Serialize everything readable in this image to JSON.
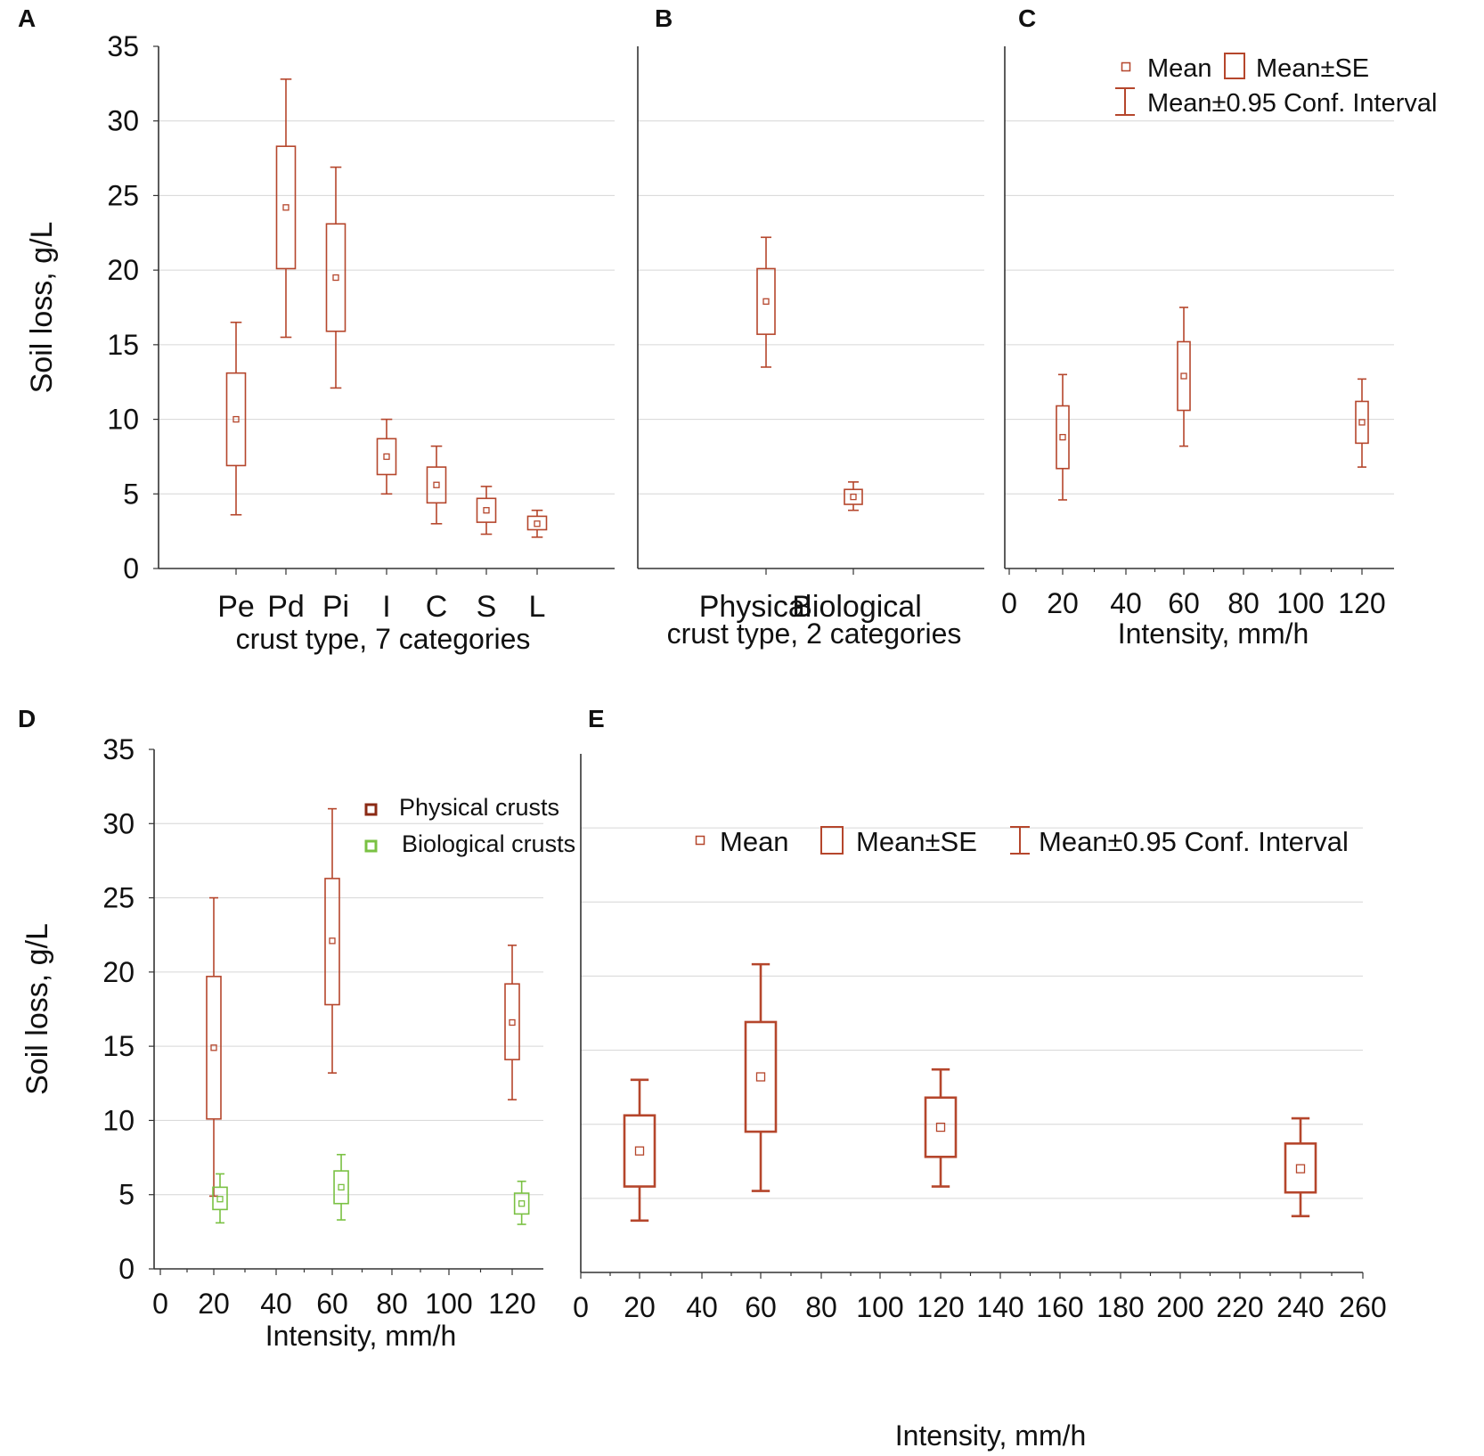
{
  "colors": {
    "physical": "#b5462c",
    "biological": "#7ac143",
    "axis": "#333333",
    "grid": "#d6d6d6"
  },
  "legend_top": {
    "mean": "Mean",
    "se": "Mean±SE",
    "ci": "Mean±0.95 Conf. Interval"
  },
  "chart_data": [
    {
      "id": "A",
      "panel_label": "A",
      "type": "box",
      "ylabel": "Soil loss, g/L",
      "xlabel": "crust type, 7 categories",
      "ylim": [
        0,
        35
      ],
      "yticks": [
        0,
        5,
        10,
        15,
        20,
        25,
        30,
        35
      ],
      "categories": [
        "Pe",
        "Pd",
        "Pi",
        "I",
        "C",
        "S",
        "L"
      ],
      "series": [
        {
          "name": "Soil loss",
          "points": [
            {
              "x": "Pe",
              "mean": 10.0,
              "se_low": 6.9,
              "se_high": 13.1,
              "ci_low": 3.6,
              "ci_high": 16.5
            },
            {
              "x": "Pd",
              "mean": 24.2,
              "se_low": 20.1,
              "se_high": 28.3,
              "ci_low": 15.5,
              "ci_high": 32.8
            },
            {
              "x": "Pi",
              "mean": 19.5,
              "se_low": 15.9,
              "se_high": 23.1,
              "ci_low": 12.1,
              "ci_high": 26.9
            },
            {
              "x": "I",
              "mean": 7.5,
              "se_low": 6.3,
              "se_high": 8.7,
              "ci_low": 5.0,
              "ci_high": 10.0
            },
            {
              "x": "C",
              "mean": 5.6,
              "se_low": 4.4,
              "se_high": 6.8,
              "ci_low": 3.0,
              "ci_high": 8.2
            },
            {
              "x": "S",
              "mean": 3.9,
              "se_low": 3.1,
              "se_high": 4.7,
              "ci_low": 2.3,
              "ci_high": 5.5
            },
            {
              "x": "L",
              "mean": 3.0,
              "se_low": 2.6,
              "se_high": 3.5,
              "ci_low": 2.1,
              "ci_high": 3.9
            }
          ]
        }
      ]
    },
    {
      "id": "B",
      "panel_label": "B",
      "type": "box",
      "ylabel": "",
      "xlabel": "crust type, 2 categories",
      "ylim": [
        0,
        35
      ],
      "categories": [
        "Physical",
        "Biological"
      ],
      "series": [
        {
          "name": "Soil loss",
          "points": [
            {
              "x": "Physical",
              "mean": 17.9,
              "se_low": 15.7,
              "se_high": 20.1,
              "ci_low": 13.5,
              "ci_high": 22.2
            },
            {
              "x": "Biological",
              "mean": 4.8,
              "se_low": 4.3,
              "se_high": 5.3,
              "ci_low": 3.9,
              "ci_high": 5.8
            }
          ]
        }
      ]
    },
    {
      "id": "C",
      "panel_label": "C",
      "type": "box",
      "ylabel": "",
      "xlabel": "Intensity, mm/h",
      "ylim": [
        0,
        35
      ],
      "xlim": [
        0,
        125
      ],
      "xticks": [
        0,
        20,
        40,
        60,
        80,
        100,
        120
      ],
      "series": [
        {
          "name": "Soil loss",
          "points": [
            {
              "x": 20,
              "mean": 8.8,
              "se_low": 6.7,
              "se_high": 10.9,
              "ci_low": 4.6,
              "ci_high": 13.0
            },
            {
              "x": 60,
              "mean": 12.9,
              "se_low": 10.6,
              "se_high": 15.2,
              "ci_low": 8.2,
              "ci_high": 17.5
            },
            {
              "x": 120,
              "mean": 9.8,
              "se_low": 8.4,
              "se_high": 11.2,
              "ci_low": 6.8,
              "ci_high": 12.7
            }
          ]
        }
      ],
      "legend": [
        "Mean",
        "Mean±SE",
        "Mean±0.95 Conf. Interval"
      ]
    },
    {
      "id": "D",
      "panel_label": "D",
      "type": "box",
      "ylabel": "Soil loss, g/L",
      "xlabel": "Intensity, mm/h",
      "ylim": [
        0,
        35
      ],
      "yticks": [
        0,
        5,
        10,
        15,
        20,
        25,
        30,
        35
      ],
      "xlim": [
        0,
        130
      ],
      "xticks": [
        0,
        20,
        40,
        60,
        80,
        100,
        120
      ],
      "series": [
        {
          "name": "Physical crusts",
          "color": "#b5462c",
          "points": [
            {
              "x": 20,
              "mean": 14.9,
              "se_low": 10.1,
              "se_high": 19.7,
              "ci_low": 4.9,
              "ci_high": 25.0
            },
            {
              "x": 60,
              "mean": 22.1,
              "se_low": 17.8,
              "se_high": 26.3,
              "ci_low": 13.2,
              "ci_high": 31.0
            },
            {
              "x": 120,
              "mean": 16.6,
              "se_low": 14.1,
              "se_high": 19.2,
              "ci_low": 11.4,
              "ci_high": 21.8
            }
          ]
        },
        {
          "name": "Biological crusts",
          "color": "#7ac143",
          "points": [
            {
              "x": 22,
              "mean": 4.7,
              "se_low": 4.0,
              "se_high": 5.5,
              "ci_low": 3.1,
              "ci_high": 6.4
            },
            {
              "x": 63,
              "mean": 5.5,
              "se_low": 4.4,
              "se_high": 6.6,
              "ci_low": 3.3,
              "ci_high": 7.7
            },
            {
              "x": 123,
              "mean": 4.4,
              "se_low": 3.7,
              "se_high": 5.1,
              "ci_low": 3.0,
              "ci_high": 5.9
            }
          ]
        }
      ],
      "legend": [
        "Physical crusts",
        "Biological crusts"
      ]
    },
    {
      "id": "E",
      "panel_label": "E",
      "type": "box",
      "ylabel": "",
      "xlabel": "Intensity, mm/h",
      "ylim": [
        0,
        35
      ],
      "xlim": [
        0,
        260
      ],
      "xticks": [
        0,
        20,
        40,
        60,
        80,
        100,
        120,
        140,
        160,
        180,
        200,
        220,
        240,
        260
      ],
      "series": [
        {
          "name": "Soil loss",
          "points": [
            {
              "x": 20,
              "mean": 8.2,
              "se_low": 5.8,
              "se_high": 10.6,
              "ci_low": 3.5,
              "ci_high": 13.0
            },
            {
              "x": 60,
              "mean": 13.2,
              "se_low": 9.5,
              "se_high": 16.9,
              "ci_low": 5.5,
              "ci_high": 20.8
            },
            {
              "x": 120,
              "mean": 9.8,
              "se_low": 7.8,
              "se_high": 11.8,
              "ci_low": 5.8,
              "ci_high": 13.7
            },
            {
              "x": 240,
              "mean": 7.0,
              "se_low": 5.4,
              "se_high": 8.7,
              "ci_low": 3.8,
              "ci_high": 10.4
            }
          ]
        }
      ],
      "legend": [
        "Mean",
        "Mean±SE",
        "Mean±0.95 Conf. Interval"
      ]
    }
  ]
}
